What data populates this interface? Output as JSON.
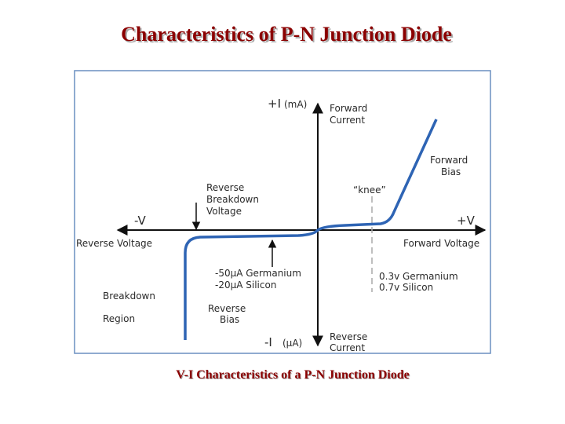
{
  "title": "Characteristics of P-N Junction Diode",
  "caption": "V-I  Characteristics of a P-N Junction Diode",
  "diagram": {
    "plus_i": "+I",
    "plus_i_unit": "(mA)",
    "forward_current": [
      "Forward",
      "Current"
    ],
    "forward_bias": [
      "Forward",
      "Bias"
    ],
    "knee": "“knee”",
    "reverse_breakdown_voltage": [
      "Reverse",
      "Breakdown",
      "Voltage"
    ],
    "minus_v": "-V",
    "plus_v": "+V",
    "reverse_voltage": "Reverse Voltage",
    "forward_voltage": "Forward Voltage",
    "reverse_saturation": [
      "-50μA Germanium",
      "-20μA Silicon"
    ],
    "threshold": [
      "0.3v Germanium",
      "0.7v Silicon"
    ],
    "breakdown_region": [
      "Breakdown",
      "Region"
    ],
    "reverse_bias": [
      "Reverse",
      "Bias"
    ],
    "minus_i": "-I",
    "minus_i_unit": "(μA)",
    "reverse_current": [
      "Reverse",
      "Current"
    ]
  }
}
